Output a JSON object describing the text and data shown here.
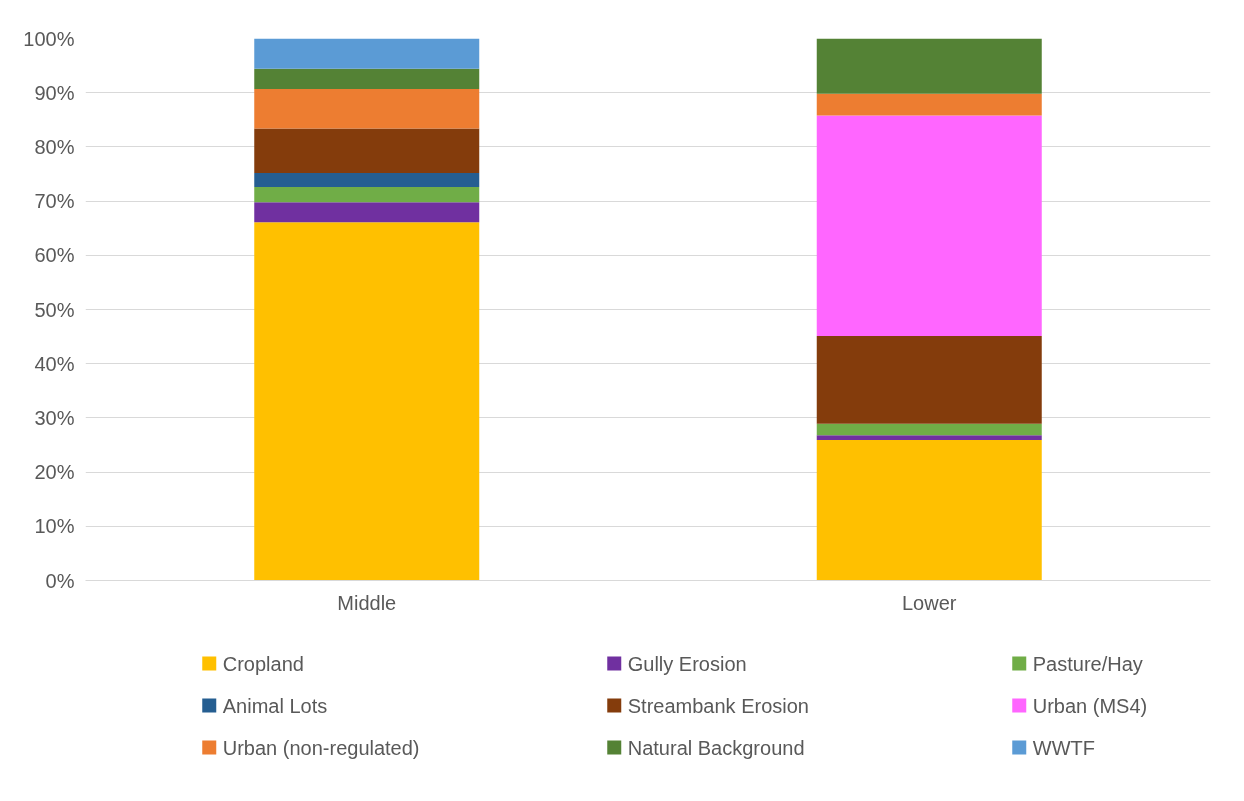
{
  "chart_data": {
    "type": "bar",
    "stacked": true,
    "categories": [
      "Middle",
      "Lower"
    ],
    "series": [
      {
        "name": "Cropland",
        "color": "#ffc000",
        "values": [
          66.1,
          25.9
        ]
      },
      {
        "name": "Gully Erosion",
        "color": "#7030a0",
        "values": [
          3.7,
          0.9
        ]
      },
      {
        "name": "Pasture/Hay",
        "color": "#70ad47",
        "values": [
          2.8,
          2.1
        ]
      },
      {
        "name": "Animal Lots",
        "color": "#255e91",
        "values": [
          2.6,
          0
        ]
      },
      {
        "name": "Streambank Erosion",
        "color": "#843c0c",
        "values": [
          8.2,
          16.2
        ]
      },
      {
        "name": "Urban (MS4)",
        "color": "#ff66ff",
        "values": [
          0,
          40.7
        ]
      },
      {
        "name": "Urban (non-regulated)",
        "color": "#ed7d31",
        "values": [
          7.3,
          4.0
        ]
      },
      {
        "name": "Natural Background",
        "color": "#548235",
        "values": [
          3.7,
          10.2
        ]
      },
      {
        "name": "WWTF",
        "color": "#5b9bd5",
        "values": [
          5.6,
          0
        ]
      }
    ],
    "ylim": [
      0,
      100
    ],
    "yticks": [
      {
        "value": 0,
        "label": "0%"
      },
      {
        "value": 10,
        "label": "10%"
      },
      {
        "value": 20,
        "label": "20%"
      },
      {
        "value": 30,
        "label": "30%"
      },
      {
        "value": 40,
        "label": "40%"
      },
      {
        "value": 50,
        "label": "50%"
      },
      {
        "value": 60,
        "label": "60%"
      },
      {
        "value": 70,
        "label": "70%"
      },
      {
        "value": 80,
        "label": "80%"
      },
      {
        "value": 90,
        "label": "90%"
      },
      {
        "value": 100,
        "label": "100%"
      }
    ],
    "grid": "y",
    "legend": "bottom"
  }
}
